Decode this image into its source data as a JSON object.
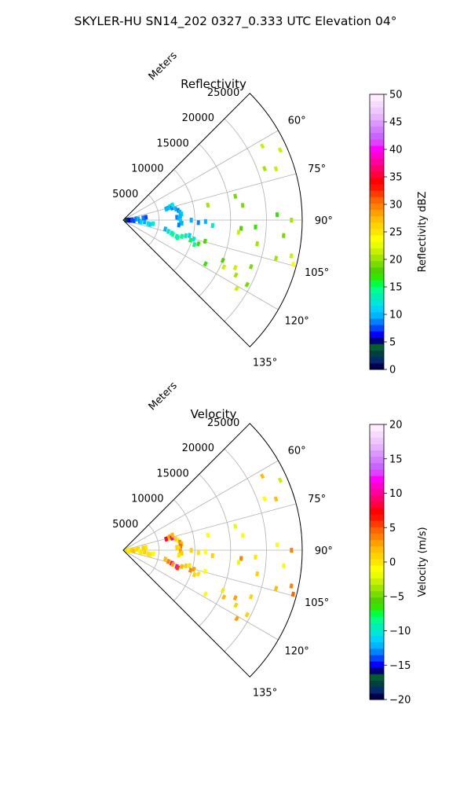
{
  "figure": {
    "title": "SKYLER-HU  SN14_202  0327_0.333 UTC Elevation 04°"
  },
  "chart_data": [
    {
      "type": "scatter",
      "title": "Reflectivity",
      "projection": "polar-sector",
      "radial_label": "Meters",
      "r_ticks": [
        "5000",
        "10000",
        "15000",
        "20000",
        "25000"
      ],
      "r_max": 25000,
      "theta_range_deg": [
        45,
        135
      ],
      "theta_tick_labels": [
        "60°",
        "75°",
        "90°",
        "105°",
        "120°",
        "135°"
      ],
      "grid": true,
      "colorbar": {
        "label": "Reflectivity dBZ",
        "min": 0,
        "max": 50,
        "ticks": [
          "0",
          "5",
          "10",
          "15",
          "20",
          "25",
          "30",
          "35",
          "40",
          "45",
          "50"
        ],
        "colors": [
          "#00004c",
          "#002a6a",
          "#003f3f",
          "#005f2f",
          "#00007f",
          "#0000ff",
          "#0046ff",
          "#0082ff",
          "#00b4ff",
          "#00d2ff",
          "#00e6dc",
          "#00f0b4",
          "#00ff8c",
          "#00ff3c",
          "#32e600",
          "#50d200",
          "#78dc00",
          "#a0e600",
          "#c8f000",
          "#e6ff00",
          "#ffff00",
          "#ffe600",
          "#ffd200",
          "#ffbe00",
          "#ffa000",
          "#ff8200",
          "#ff6400",
          "#ff3c00",
          "#ff1400",
          "#ff0000",
          "#ff0040",
          "#ff0070",
          "#ff00a0",
          "#ff00d0",
          "#ff00ff",
          "#e040ff",
          "#c864ff",
          "#d27dff",
          "#dc96ff",
          "#e6b4ff",
          "#f0c8ff",
          "#f5dcff",
          "#ffecff"
        ]
      },
      "points": [
        {
          "theta": 90.5,
          "r": 400,
          "v": 4
        },
        {
          "theta": 91,
          "r": 600,
          "v": 3
        },
        {
          "theta": 89,
          "r": 800,
          "v": 6
        },
        {
          "theta": 92,
          "r": 1000,
          "v": 5
        },
        {
          "theta": 88,
          "r": 1200,
          "v": 7
        },
        {
          "theta": 93,
          "r": 1500,
          "v": 8
        },
        {
          "theta": 85,
          "r": 1800,
          "v": 9
        },
        {
          "theta": 86,
          "r": 2100,
          "v": 10
        },
        {
          "theta": 94,
          "r": 2300,
          "v": 9
        },
        {
          "theta": 96,
          "r": 2500,
          "v": 11
        },
        {
          "theta": 95,
          "r": 3000,
          "v": 10
        },
        {
          "theta": 98,
          "r": 3500,
          "v": 12
        },
        {
          "theta": 97,
          "r": 4200,
          "v": 13
        },
        {
          "theta": 99,
          "r": 3800,
          "v": 11
        },
        {
          "theta": 84,
          "r": 2800,
          "v": 9
        },
        {
          "theta": 83,
          "r": 3200,
          "v": 8
        },
        {
          "theta": 75,
          "r": 6500,
          "v": 10
        },
        {
          "theta": 74,
          "r": 6800,
          "v": 11
        },
        {
          "theta": 76,
          "r": 7000,
          "v": 9
        },
        {
          "theta": 73,
          "r": 7200,
          "v": 12
        },
        {
          "theta": 75.5,
          "r": 6200,
          "v": 10
        },
        {
          "theta": 78,
          "r": 7500,
          "v": 10
        },
        {
          "theta": 80,
          "r": 7800,
          "v": 9
        },
        {
          "theta": 82,
          "r": 8000,
          "v": 10
        },
        {
          "theta": 84,
          "r": 8200,
          "v": 11
        },
        {
          "theta": 86,
          "r": 8000,
          "v": 10
        },
        {
          "theta": 87,
          "r": 7500,
          "v": 9
        },
        {
          "theta": 88,
          "r": 7800,
          "v": 10
        },
        {
          "theta": 91,
          "r": 8000,
          "v": 11
        },
        {
          "theta": 93,
          "r": 8200,
          "v": 10
        },
        {
          "theta": 95,
          "r": 7800,
          "v": 9
        },
        {
          "theta": 90,
          "r": 9500,
          "v": 10
        },
        {
          "theta": 92,
          "r": 10500,
          "v": 9
        },
        {
          "theta": 91,
          "r": 11500,
          "v": 10
        },
        {
          "theta": 93.5,
          "r": 12500,
          "v": 12
        },
        {
          "theta": 102,
          "r": 6000,
          "v": 10
        },
        {
          "theta": 104,
          "r": 6500,
          "v": 12
        },
        {
          "theta": 105,
          "r": 7000,
          "v": 13
        },
        {
          "theta": 106,
          "r": 7200,
          "v": 14
        },
        {
          "theta": 107,
          "r": 7800,
          "v": 12
        },
        {
          "theta": 108,
          "r": 8000,
          "v": 14
        },
        {
          "theta": 105.5,
          "r": 8500,
          "v": 15
        },
        {
          "theta": 104,
          "r": 9000,
          "v": 13
        },
        {
          "theta": 103,
          "r": 9500,
          "v": 11
        },
        {
          "theta": 106.5,
          "r": 9800,
          "v": 16
        },
        {
          "theta": 109,
          "r": 10500,
          "v": 15
        },
        {
          "theta": 107.5,
          "r": 11000,
          "v": 17
        },
        {
          "theta": 105,
          "r": 10200,
          "v": 12
        },
        {
          "theta": 104.5,
          "r": 11800,
          "v": 18
        },
        {
          "theta": 80,
          "r": 12000,
          "v": 20
        },
        {
          "theta": 78,
          "r": 16000,
          "v": 19
        },
        {
          "theta": 94,
          "r": 16500,
          "v": 18
        },
        {
          "theta": 83,
          "r": 16800,
          "v": 19
        },
        {
          "theta": 100,
          "r": 19000,
          "v": 20
        },
        {
          "theta": 93,
          "r": 18500,
          "v": 17
        },
        {
          "theta": 96,
          "r": 16200,
          "v": 21
        },
        {
          "theta": 70,
          "r": 21000,
          "v": 20
        },
        {
          "theta": 71.5,
          "r": 22500,
          "v": 21
        },
        {
          "theta": 88,
          "r": 21500,
          "v": 17
        },
        {
          "theta": 104,
          "r": 22000,
          "v": 20
        },
        {
          "theta": 110,
          "r": 19000,
          "v": 19
        },
        {
          "theta": 113,
          "r": 17000,
          "v": 22
        },
        {
          "theta": 112,
          "r": 15000,
          "v": 18
        },
        {
          "theta": 115,
          "r": 15500,
          "v": 21
        },
        {
          "theta": 118,
          "r": 13000,
          "v": 17
        },
        {
          "theta": 116,
          "r": 17500,
          "v": 20
        },
        {
          "theta": 117.5,
          "r": 19500,
          "v": 19
        },
        {
          "theta": 121,
          "r": 18500,
          "v": 21
        },
        {
          "theta": 95.5,
          "r": 22500,
          "v": 19
        },
        {
          "theta": 104.5,
          "r": 24500,
          "v": 24
        },
        {
          "theta": 102,
          "r": 24000,
          "v": 22
        },
        {
          "theta": 90,
          "r": 23500,
          "v": 20
        },
        {
          "theta": 62,
          "r": 22000,
          "v": 22
        },
        {
          "theta": 66,
          "r": 24000,
          "v": 21
        }
      ]
    },
    {
      "type": "scatter",
      "title": "Velocity",
      "projection": "polar-sector",
      "radial_label": "Meters",
      "r_ticks": [
        "5000",
        "10000",
        "15000",
        "20000",
        "25000"
      ],
      "r_max": 25000,
      "theta_range_deg": [
        45,
        135
      ],
      "theta_tick_labels": [
        "60°",
        "75°",
        "90°",
        "105°",
        "120°",
        "135°"
      ],
      "grid": true,
      "colorbar": {
        "label": "Velocity (m/s)",
        "min": -20,
        "max": 20,
        "ticks": [
          "−20",
          "−15",
          "−10",
          "−5",
          "0",
          "5",
          "10",
          "15",
          "20"
        ],
        "colors": [
          "#00004c",
          "#002a6a",
          "#003f3f",
          "#005f2f",
          "#00007f",
          "#0000ff",
          "#0046ff",
          "#0082ff",
          "#00b4ff",
          "#00d2ff",
          "#00e6dc",
          "#00f0b4",
          "#00ff8c",
          "#00ff3c",
          "#32e600",
          "#50d200",
          "#78dc00",
          "#a0e600",
          "#c8f000",
          "#e6ff00",
          "#ffff00",
          "#ffe600",
          "#ffd200",
          "#ffbe00",
          "#ffa000",
          "#ff8200",
          "#ff6400",
          "#ff3c00",
          "#ff1400",
          "#ff0000",
          "#ff0040",
          "#ff0070",
          "#ff00a0",
          "#ff00d0",
          "#ff00ff",
          "#e040ff",
          "#c864ff",
          "#d27dff",
          "#dc96ff",
          "#e6b4ff",
          "#f0c8ff",
          "#f5dcff",
          "#ffecff"
        ]
      },
      "points": [
        {
          "theta": 90.5,
          "r": 400,
          "v": 0
        },
        {
          "theta": 91,
          "r": 600,
          "v": 1
        },
        {
          "theta": 89,
          "r": 800,
          "v": -1
        },
        {
          "theta": 92,
          "r": 1000,
          "v": 0
        },
        {
          "theta": 88,
          "r": 1200,
          "v": 1
        },
        {
          "theta": 93,
          "r": 1500,
          "v": 2
        },
        {
          "theta": 85,
          "r": 1800,
          "v": 0
        },
        {
          "theta": 86,
          "r": 2100,
          "v": 1
        },
        {
          "theta": 94,
          "r": 2300,
          "v": -1
        },
        {
          "theta": 96,
          "r": 2500,
          "v": 0
        },
        {
          "theta": 95,
          "r": 3000,
          "v": 1
        },
        {
          "theta": 98,
          "r": 3500,
          "v": 0
        },
        {
          "theta": 97,
          "r": 4200,
          "v": -1
        },
        {
          "theta": 99,
          "r": 3800,
          "v": 0
        },
        {
          "theta": 84,
          "r": 2800,
          "v": 1
        },
        {
          "theta": 83,
          "r": 3200,
          "v": 0
        },
        {
          "theta": 75,
          "r": 6500,
          "v": 1
        },
        {
          "theta": 74,
          "r": 6800,
          "v": 3
        },
        {
          "theta": 76,
          "r": 7000,
          "v": 10
        },
        {
          "theta": 73,
          "r": 7200,
          "v": 2
        },
        {
          "theta": 75.5,
          "r": 6200,
          "v": 8
        },
        {
          "theta": 78,
          "r": 7500,
          "v": 1
        },
        {
          "theta": 80,
          "r": 7800,
          "v": 0
        },
        {
          "theta": 82,
          "r": 8000,
          "v": 4
        },
        {
          "theta": 84,
          "r": 8200,
          "v": 2
        },
        {
          "theta": 86,
          "r": 8000,
          "v": 5
        },
        {
          "theta": 87,
          "r": 7500,
          "v": 1
        },
        {
          "theta": 88,
          "r": 7800,
          "v": 0
        },
        {
          "theta": 91,
          "r": 8000,
          "v": 3
        },
        {
          "theta": 93,
          "r": 8200,
          "v": 1
        },
        {
          "theta": 95,
          "r": 7800,
          "v": 0
        },
        {
          "theta": 90,
          "r": 9500,
          "v": 1
        },
        {
          "theta": 92,
          "r": 10500,
          "v": 0
        },
        {
          "theta": 91,
          "r": 11500,
          "v": -1
        },
        {
          "theta": 93.5,
          "r": 12500,
          "v": 1
        },
        {
          "theta": 102,
          "r": 6000,
          "v": 2
        },
        {
          "theta": 104,
          "r": 6500,
          "v": 4
        },
        {
          "theta": 105,
          "r": 7000,
          "v": 9
        },
        {
          "theta": 106,
          "r": 7200,
          "v": 3
        },
        {
          "theta": 107,
          "r": 7800,
          "v": 11
        },
        {
          "theta": 108,
          "r": 8000,
          "v": 6
        },
        {
          "theta": 105.5,
          "r": 8500,
          "v": 2
        },
        {
          "theta": 104,
          "r": 9000,
          "v": 1
        },
        {
          "theta": 103,
          "r": 9500,
          "v": 0
        },
        {
          "theta": 106.5,
          "r": 9800,
          "v": 4
        },
        {
          "theta": 109,
          "r": 10500,
          "v": 1
        },
        {
          "theta": 107.5,
          "r": 11000,
          "v": 0
        },
        {
          "theta": 105,
          "r": 10200,
          "v": 3
        },
        {
          "theta": 104.5,
          "r": 11800,
          "v": -1
        },
        {
          "theta": 80,
          "r": 12000,
          "v": -1
        },
        {
          "theta": 78,
          "r": 16000,
          "v": -2
        },
        {
          "theta": 94,
          "r": 16500,
          "v": 4
        },
        {
          "theta": 83,
          "r": 16800,
          "v": -1
        },
        {
          "theta": 100,
          "r": 19000,
          "v": 1
        },
        {
          "theta": 93,
          "r": 18500,
          "v": 0
        },
        {
          "theta": 96,
          "r": 16200,
          "v": -2
        },
        {
          "theta": 70,
          "r": 21000,
          "v": -1
        },
        {
          "theta": 71.5,
          "r": 22500,
          "v": 2
        },
        {
          "theta": 88,
          "r": 21500,
          "v": -1
        },
        {
          "theta": 104,
          "r": 22000,
          "v": 2
        },
        {
          "theta": 110,
          "r": 19000,
          "v": 1
        },
        {
          "theta": 113,
          "r": 17000,
          "v": 3
        },
        {
          "theta": 112,
          "r": 15000,
          "v": 0
        },
        {
          "theta": 115,
          "r": 15500,
          "v": 2
        },
        {
          "theta": 118,
          "r": 13000,
          "v": -1
        },
        {
          "theta": 116,
          "r": 17500,
          "v": 1
        },
        {
          "theta": 117.5,
          "r": 19500,
          "v": 1
        },
        {
          "theta": 121,
          "r": 18500,
          "v": 3
        },
        {
          "theta": 95.5,
          "r": 22500,
          "v": -1
        },
        {
          "theta": 104.5,
          "r": 24500,
          "v": 5
        },
        {
          "theta": 102,
          "r": 24000,
          "v": 4
        },
        {
          "theta": 90,
          "r": 23500,
          "v": 4
        },
        {
          "theta": 62,
          "r": 22000,
          "v": 2
        },
        {
          "theta": 66,
          "r": 24000,
          "v": -3
        }
      ]
    }
  ]
}
